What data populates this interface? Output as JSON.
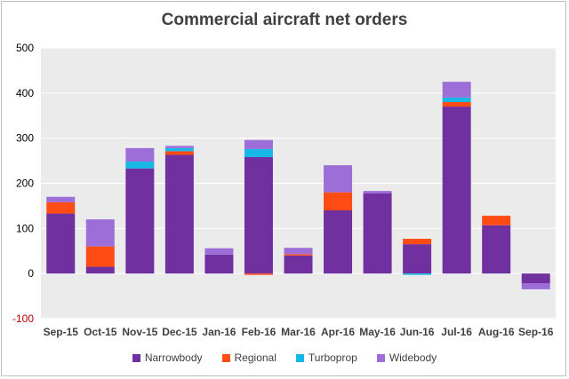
{
  "chart_data": {
    "type": "bar",
    "stacked": true,
    "title": "Commercial aircraft net orders",
    "xlabel": "",
    "ylabel": "",
    "ylim": [
      -100,
      500
    ],
    "yticks": [
      500,
      400,
      300,
      200,
      100,
      0,
      -100
    ],
    "grid": true,
    "legend_position": "bottom",
    "categories": [
      "Sep-15",
      "Oct-15",
      "Nov-15",
      "Dec-15",
      "Jan-16",
      "Feb-16",
      "Mar-16",
      "Apr-16",
      "May-16",
      "Jun-16",
      "Jul-16",
      "Aug-16",
      "Sep-16"
    ],
    "series": [
      {
        "name": "Narrowbody",
        "color": "#7030a0",
        "values": [
          133,
          15,
          233,
          263,
          42,
          258,
          40,
          140,
          178,
          65,
          370,
          107,
          -22
        ]
      },
      {
        "name": "Regional",
        "color": "#ff4b14",
        "values": [
          25,
          45,
          0,
          8,
          0,
          -3,
          3,
          40,
          0,
          12,
          10,
          21,
          0
        ]
      },
      {
        "name": "Turboprop",
        "color": "#17b8e6",
        "values": [
          0,
          0,
          15,
          7,
          0,
          18,
          0,
          0,
          0,
          -3,
          10,
          0,
          0
        ]
      },
      {
        "name": "Widebody",
        "color": "#9d6ed8",
        "values": [
          12,
          60,
          30,
          5,
          14,
          20,
          14,
          60,
          5,
          0,
          35,
          0,
          -13
        ]
      }
    ]
  }
}
